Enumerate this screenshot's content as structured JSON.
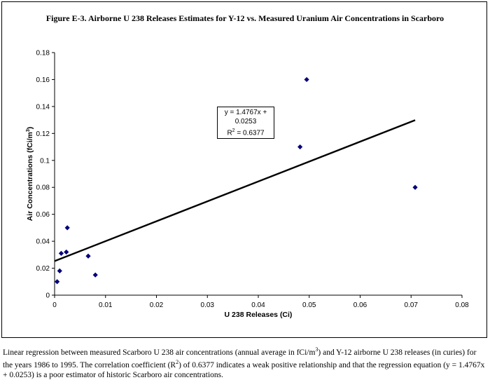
{
  "chart_data": {
    "type": "scatter",
    "title": "Figure E-3. Airborne U 238 Releases Estimates for Y-12 vs. Measured Uranium Air Concentrations in Scarboro",
    "xlabel": "U 238 Releases (Ci)",
    "ylabel_text": "Air Concentrations (fCi/m",
    "ylabel_sup": "3",
    "ylabel_close": ")",
    "xlim": [
      0,
      0.08
    ],
    "ylim": [
      0,
      0.18
    ],
    "xticks": [
      "0",
      "0.01",
      "0.02",
      "0.03",
      "0.04",
      "0.05",
      "0.06",
      "0.07",
      "0.08"
    ],
    "yticks": [
      "0",
      "0.02",
      "0.04",
      "0.06",
      "0.08",
      "0.1",
      "0.12",
      "0.14",
      "0.16",
      "0.18"
    ],
    "points": [
      {
        "x": 0.0005,
        "y": 0.01
      },
      {
        "x": 0.001,
        "y": 0.018
      },
      {
        "x": 0.0013,
        "y": 0.031
      },
      {
        "x": 0.0023,
        "y": 0.032
      },
      {
        "x": 0.0025,
        "y": 0.05
      },
      {
        "x": 0.0066,
        "y": 0.029
      },
      {
        "x": 0.008,
        "y": 0.015
      },
      {
        "x": 0.0482,
        "y": 0.11
      },
      {
        "x": 0.0495,
        "y": 0.16
      },
      {
        "x": 0.0708,
        "y": 0.08
      }
    ],
    "trendline": {
      "slope": 1.4767,
      "intercept": 0.0253,
      "x_start": 0,
      "x_end": 0.0708
    },
    "equation": "y = 1.4767x + 0.0253",
    "r2_label": "R",
    "r2_sup": "2",
    "r2_value": " = 0.6377",
    "marker_color": "#00007a",
    "line_color": "#000000",
    "grid": false
  },
  "caption": {
    "p1": "Linear regression between measured Scarboro U 238 air concentrations (annual average in fCi/m",
    "sup1": "3",
    "p2": ") and Y-12 airborne U 238 releases (in curies) for the years 1986 to 1995. The correlation coefficient (R",
    "sup2": "2",
    "p3": ") of 0.6377 indicates a weak positive relationship and that the regression equation (y = 1.4767x + 0.0253) is a poor estimator of historic Scarboro air concentrations."
  }
}
